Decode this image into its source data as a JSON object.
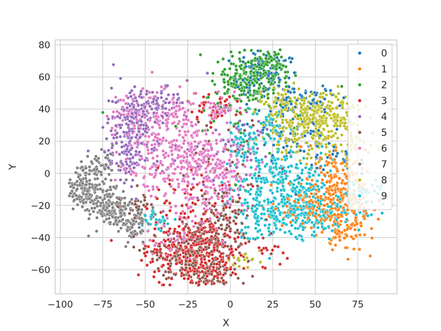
{
  "chart_data": {
    "type": "scatter",
    "xlabel": "X",
    "ylabel": "Y",
    "xlim": [
      -103,
      98
    ],
    "ylim": [
      -75,
      83
    ],
    "xticks": [
      -100,
      -75,
      -50,
      -25,
      0,
      25,
      50,
      75
    ],
    "xtick_labels": [
      "−100",
      "−75",
      "−50",
      "−25",
      "0",
      "25",
      "50",
      "75"
    ],
    "yticks": [
      -60,
      -40,
      -20,
      0,
      20,
      40,
      60,
      80
    ],
    "ytick_labels": [
      "−60",
      "−40",
      "−20",
      "0",
      "20",
      "40",
      "60",
      "80"
    ],
    "grid": true,
    "legend_position": "top-right",
    "series": [
      {
        "name": "0",
        "color": "#1f77b4",
        "clusters": [
          [
            20,
            60,
            10,
            8,
            90
          ],
          [
            45,
            45,
            10,
            5,
            60
          ],
          [
            35,
            25,
            12,
            8,
            60
          ],
          [
            60,
            10,
            10,
            8,
            40
          ]
        ]
      },
      {
        "name": "1",
        "color": "#ff7f0e",
        "clusters": [
          [
            62,
            -5,
            8,
            12,
            140
          ],
          [
            68,
            -25,
            8,
            10,
            120
          ],
          [
            55,
            -20,
            8,
            8,
            70
          ],
          [
            63,
            -38,
            5,
            4,
            30
          ],
          [
            40,
            -20,
            10,
            8,
            40
          ]
        ]
      },
      {
        "name": "2",
        "color": "#2ca02c",
        "clusters": [
          [
            15,
            60,
            10,
            7,
            200
          ],
          [
            22,
            70,
            5,
            4,
            50
          ],
          [
            5,
            55,
            8,
            6,
            60
          ],
          [
            0,
            30,
            25,
            20,
            40
          ]
        ]
      },
      {
        "name": "3",
        "color": "#d62728",
        "clusters": [
          [
            -30,
            -50,
            12,
            9,
            170
          ],
          [
            -12,
            -45,
            12,
            12,
            160
          ],
          [
            -15,
            -62,
            8,
            4,
            50
          ],
          [
            -10,
            40,
            8,
            5,
            40
          ],
          [
            -20,
            -20,
            20,
            15,
            50
          ],
          [
            20,
            -50,
            5,
            3,
            10
          ]
        ]
      },
      {
        "name": "4",
        "color": "#9467bd",
        "clusters": [
          [
            -58,
            30,
            8,
            12,
            160
          ],
          [
            -45,
            42,
            8,
            5,
            60
          ],
          [
            -60,
            10,
            6,
            6,
            50
          ],
          [
            -20,
            10,
            25,
            20,
            60
          ],
          [
            10,
            20,
            10,
            10,
            30
          ]
        ]
      },
      {
        "name": "5",
        "color": "#8c564b",
        "clusters": [
          [
            -25,
            -48,
            12,
            10,
            160
          ],
          [
            -5,
            -35,
            10,
            12,
            120
          ],
          [
            -15,
            -62,
            10,
            5,
            60
          ],
          [
            -55,
            -20,
            6,
            6,
            30
          ],
          [
            0,
            10,
            15,
            15,
            40
          ]
        ]
      },
      {
        "name": "6",
        "color": "#e377c2",
        "clusters": [
          [
            -38,
            10,
            12,
            12,
            180
          ],
          [
            -20,
            10,
            10,
            10,
            140
          ],
          [
            -5,
            0,
            10,
            10,
            100
          ],
          [
            -55,
            35,
            8,
            10,
            80
          ],
          [
            -35,
            40,
            8,
            6,
            60
          ],
          [
            -5,
            40,
            6,
            4,
            50
          ],
          [
            -20,
            -20,
            10,
            10,
            50
          ],
          [
            -30,
            -40,
            10,
            8,
            40
          ]
        ]
      },
      {
        "name": "7",
        "color": "#7f7f7f",
        "clusters": [
          [
            -85,
            -8,
            5,
            6,
            150
          ],
          [
            -70,
            -22,
            7,
            6,
            150
          ],
          [
            -58,
            -32,
            5,
            5,
            70
          ],
          [
            -75,
            5,
            5,
            5,
            40
          ]
        ]
      },
      {
        "name": "8",
        "color": "#bcbd22",
        "clusters": [
          [
            45,
            30,
            12,
            10,
            280
          ],
          [
            60,
            38,
            8,
            6,
            80
          ],
          [
            30,
            45,
            6,
            5,
            40
          ],
          [
            70,
            20,
            6,
            6,
            40
          ],
          [
            10,
            -55,
            5,
            4,
            15
          ]
        ]
      },
      {
        "name": "9",
        "color": "#17becf",
        "clusters": [
          [
            30,
            -5,
            12,
            10,
            240
          ],
          [
            45,
            -25,
            10,
            8,
            180
          ],
          [
            20,
            -25,
            10,
            8,
            120
          ],
          [
            75,
            -15,
            8,
            6,
            70
          ],
          [
            10,
            20,
            6,
            8,
            50
          ],
          [
            -45,
            -30,
            5,
            5,
            30
          ],
          [
            25,
            30,
            6,
            6,
            40
          ]
        ]
      }
    ]
  }
}
